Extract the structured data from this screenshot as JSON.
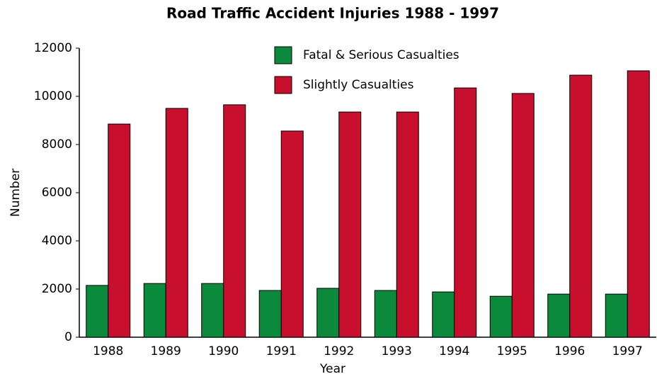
{
  "chart_data": {
    "type": "bar",
    "title": "Road Traffic Accident Injuries 1988 - 1997",
    "x_label": "Year",
    "y_label": "Number",
    "categories": [
      "1988",
      "1989",
      "1990",
      "1991",
      "1992",
      "1993",
      "1994",
      "1995",
      "1996",
      "1997"
    ],
    "series": [
      {
        "name": "Fatal & Serious Casualties",
        "color": "#0a8a3a",
        "values": [
          2150,
          2230,
          2230,
          1940,
          2030,
          1940,
          1880,
          1700,
          1790,
          1790
        ]
      },
      {
        "name": "Slightly Casualties",
        "color": "#c8102e",
        "values": [
          8850,
          9500,
          9650,
          8560,
          9350,
          9350,
          10350,
          10120,
          10880,
          11060
        ]
      }
    ],
    "ylim": [
      0,
      12000
    ],
    "yticks": [
      0,
      2000,
      4000,
      6000,
      8000,
      10000,
      12000
    ],
    "grid": false,
    "legend": "top"
  }
}
